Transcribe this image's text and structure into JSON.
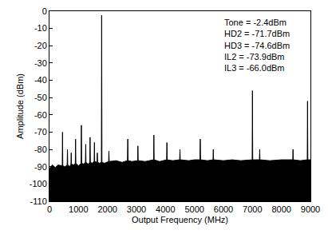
{
  "chart_data": {
    "type": "line",
    "x_label": "Output Frequency (MHz)",
    "y_label": "Amplitude (dBm)",
    "annotations": [
      "Tone = -2.4dBm",
      "HD2 = -71.7dBm",
      "HD3 = -74.6dBm",
      "IL2 = -73.9dBm",
      "IL3 = -66.0dBm"
    ],
    "color": "#000000",
    "grid": false,
    "xlim": [
      0,
      9000
    ],
    "xticks": [
      0,
      1000,
      2000,
      3000,
      4000,
      5000,
      6000,
      7000,
      8000,
      9000
    ],
    "ylim": [
      -110,
      0
    ],
    "yticks": [
      0,
      -10,
      -20,
      -30,
      -40,
      -50,
      -60,
      -70,
      -80,
      -90,
      -100,
      -110
    ],
    "x": [
      0,
      100,
      200,
      300,
      440,
      450,
      460,
      540,
      610,
      620,
      630,
      700,
      740,
      750,
      760,
      830,
      890,
      900,
      910,
      1000,
      1090,
      1100,
      1110,
      1180,
      1240,
      1250,
      1260,
      1330,
      1390,
      1400,
      1410,
      1480,
      1540,
      1550,
      1560,
      1640,
      1650,
      1660,
      1730,
      1790,
      1800,
      1810,
      1900,
      2040,
      2050,
      2060,
      2300,
      2500,
      2690,
      2700,
      2710,
      2850,
      3040,
      3050,
      3060,
      3300,
      3590,
      3600,
      3610,
      3800,
      4040,
      4050,
      4060,
      4250,
      4490,
      4500,
      4510,
      4800,
      5000,
      5190,
      5200,
      5210,
      5450,
      5640,
      5650,
      5660,
      6000,
      6300,
      6600,
      6990,
      7000,
      7010,
      7240,
      7250,
      7260,
      7600,
      8000,
      8390,
      8400,
      8410,
      8650,
      8890,
      8900,
      8910,
      9000
    ],
    "values": [
      -91,
      -89,
      -90.5,
      -89,
      -89.5,
      -70,
      -89.5,
      -90,
      -89,
      -80,
      -89,
      -90,
      -88.5,
      -82,
      -88.5,
      -89,
      -88,
      -74,
      -88,
      -89.5,
      -88,
      -66,
      -88,
      -88.5,
      -87.5,
      -77,
      -87.5,
      -88.5,
      -87.5,
      -73,
      -87.5,
      -88,
      -87,
      -76,
      -87,
      -87.5,
      -82,
      -87.5,
      -88,
      -87.5,
      -2.4,
      -87.5,
      -88,
      -87,
      -81,
      -87,
      -86.5,
      -87.5,
      -86.5,
      -74,
      -86.5,
      -87,
      -86.5,
      -78,
      -86.5,
      -87,
      -86,
      -71.7,
      -86,
      -87,
      -86,
      -76,
      -86,
      -86.5,
      -86,
      -80,
      -86,
      -86.5,
      -86,
      -86,
      -74,
      -86,
      -86.5,
      -86,
      -80,
      -86,
      -86.5,
      -86,
      -86.5,
      -86,
      -46,
      -86,
      -86,
      -80,
      -86,
      -86.5,
      -86,
      -86,
      -80,
      -86,
      -86.5,
      -86,
      -52,
      -86,
      -86
    ]
  }
}
